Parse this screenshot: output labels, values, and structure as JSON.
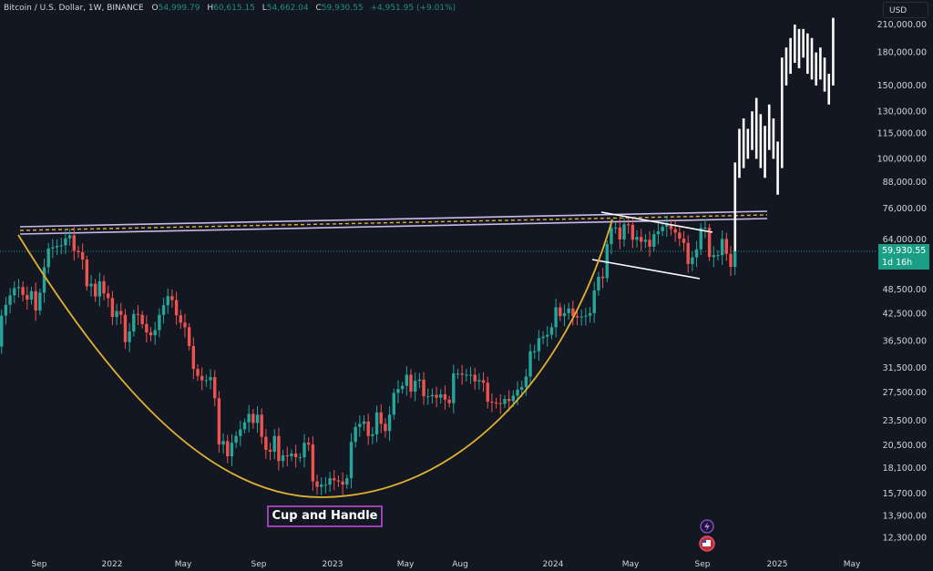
{
  "header": {
    "title": "Bitcoin / U.S. Dollar, 1W, BINANCE",
    "o_label": "O",
    "open": "54,999.79",
    "h_label": "H",
    "high": "60,615.15",
    "l_label": "L",
    "low": "54,662.04",
    "c_label": "C",
    "close": "59,930.55",
    "change": "+4,951.95 (+9.01%)"
  },
  "currency": "USD",
  "current_price": {
    "value": "59,930.55",
    "countdown": "1d 16h",
    "color": "#1a9e85"
  },
  "annotation": "Cup and Handle",
  "icons": [
    "lightning-icon",
    "us-flag-icon"
  ],
  "colors": {
    "up": "#26a69a",
    "down": "#ef5350",
    "cup": "#e0b030",
    "channel": "#c9b8e8",
    "projection": "#ffffff",
    "background": "#131722"
  },
  "chart_data": {
    "type": "candlestick",
    "scale": "log",
    "y_ticks": [
      "210,000.00",
      "180,000.00",
      "150,000.00",
      "130,000.00",
      "115,000.00",
      "100,000.00",
      "88,000.00",
      "76,000.00",
      "64,000.00",
      "48,500.00",
      "42,500.00",
      "36,500.00",
      "31,500.00",
      "27,500.00",
      "23,500.00",
      "20,500.00",
      "18,100.00",
      "15,700.00",
      "13,900.00",
      "12,300.00"
    ],
    "x_ticks": [
      "Sep",
      "2022",
      "May",
      "Sep",
      "2023",
      "May",
      "Aug",
      "2024",
      "May",
      "Sep",
      "2025",
      "May"
    ],
    "weekly_closes": [
      34,
      34,
      31.8,
      35.4,
      42,
      44.6,
      47,
      48.9,
      49.2,
      47.1,
      45.9,
      48.1,
      43.2,
      47.7,
      54.9,
      60.9,
      61.3,
      61.8,
      62,
      64.4,
      65.5,
      60.1,
      59.7,
      57.3,
      49.4,
      50.1,
      46.7,
      50.8,
      47.5,
      46.3,
      41.7,
      43.1,
      42.2,
      36.3,
      38.5,
      42.4,
      42.2,
      40.1,
      38.3,
      37.7,
      38.8,
      42.2,
      44.5,
      46.8,
      45.8,
      42.1,
      40.4,
      39.4,
      35.5,
      31.3,
      30.1,
      29.4,
      29.4,
      29.9,
      26.6,
      20.6,
      21.0,
      19.3,
      20.8,
      21.6,
      22.4,
      23.3,
      24.4,
      23.2,
      24.3,
      21.5,
      20.0,
      19.8,
      21.6,
      18.8,
      19.4,
      19.3,
      19.6,
      19.2,
      19.2,
      20.8,
      20.6,
      16.8,
      16.3,
      16.5,
      16.5,
      17.1,
      16.9,
      16.8,
      16.5,
      17.1,
      20.9,
      22.7,
      23.1,
      23.4,
      21.6,
      21.8,
      24.6,
      23.1,
      22.2,
      24.3,
      27.4,
      28.0,
      28.5,
      30.3,
      27.6,
      29.3,
      29.5,
      26.9,
      26.9,
      27.1,
      26.7,
      27.2,
      26.4,
      25.9,
      30.5,
      30.5,
      30.3,
      30.3,
      30.3,
      29.2,
      29.4,
      29.0,
      26.1,
      26.0,
      25.9,
      25.8,
      26.5,
      26.2,
      27.0,
      27.9,
      28.3,
      30.0,
      34.5,
      34.5,
      37.1,
      37.4,
      37.8,
      39.4,
      44.0,
      41.9,
      42.6,
      43.7,
      41.9,
      41.6,
      41.8,
      42.0,
      42.6,
      48.3,
      52.1,
      51.7,
      62.4,
      68.2,
      68.4,
      64.0,
      69.6,
      69.4,
      63.9,
      64.9,
      63.2,
      63.9,
      61.5,
      65.9,
      67.0,
      68.7,
      69.5,
      67.8,
      66.5,
      64.3,
      62.8,
      55.9,
      58.0,
      60.6,
      68.2,
      68.3,
      58.1,
      58.7,
      58.7,
      64.2,
      59.1,
      55.0,
      59.93
    ],
    "price_unit": "thousand USD",
    "projection_ranges": [
      [
        60,
        98
      ],
      [
        90,
        118
      ],
      [
        95,
        125
      ],
      [
        100,
        118
      ],
      [
        105,
        130
      ],
      [
        100,
        140
      ],
      [
        95,
        128
      ],
      [
        90,
        120
      ],
      [
        105,
        135
      ],
      [
        100,
        125
      ],
      [
        82,
        110
      ],
      [
        95,
        175
      ],
      [
        150,
        185
      ],
      [
        160,
        195
      ],
      [
        170,
        210
      ],
      [
        165,
        205
      ],
      [
        175,
        205
      ],
      [
        160,
        200
      ],
      [
        155,
        195
      ],
      [
        150,
        180
      ],
      [
        155,
        185
      ],
      [
        145,
        175
      ],
      [
        135,
        160
      ],
      [
        150,
        218
      ]
    ]
  }
}
